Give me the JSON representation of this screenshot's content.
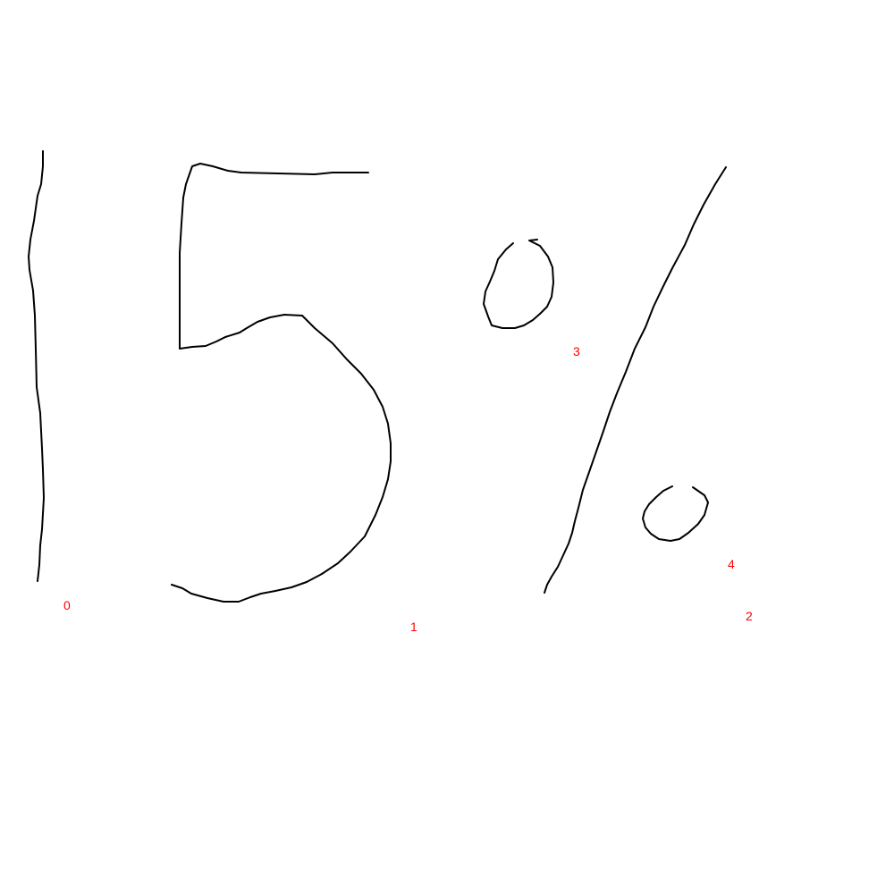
{
  "stroke_color": "#000000",
  "label_color": "#ff0000",
  "strokes": [
    {
      "label": "0",
      "depicts": "vertical-line"
    },
    {
      "label": "1",
      "depicts": "digit-five"
    },
    {
      "label": "2",
      "depicts": "diagonal-slash"
    },
    {
      "label": "3",
      "depicts": "small-circle"
    },
    {
      "label": "4",
      "depicts": "small-circle"
    }
  ]
}
